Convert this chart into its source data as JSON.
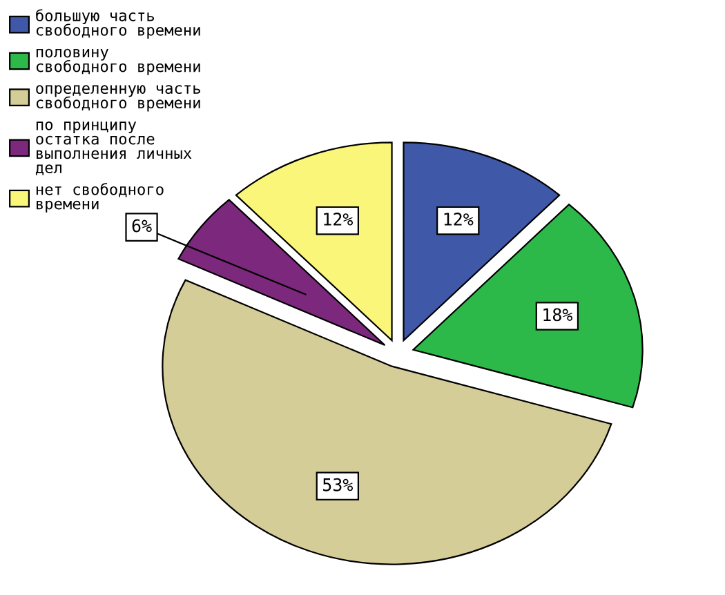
{
  "chart_data": {
    "type": "pie",
    "categories": [
      "большую часть\nсвободного времени",
      "половину\nсвободного времени",
      "определенную часть\nсвободного времени",
      "по принципу\nостатка после\nвыполнения личных\nдел",
      "нет свободного\nвремени"
    ],
    "values": [
      12,
      18,
      53,
      6,
      12
    ],
    "value_labels": [
      "12%",
      "18%",
      "53%",
      "6%",
      "12%"
    ],
    "colors": [
      "#3f58a8",
      "#2db94a",
      "#d4cd97",
      "#7c287c",
      "#faf67a"
    ],
    "legend": "top left"
  }
}
